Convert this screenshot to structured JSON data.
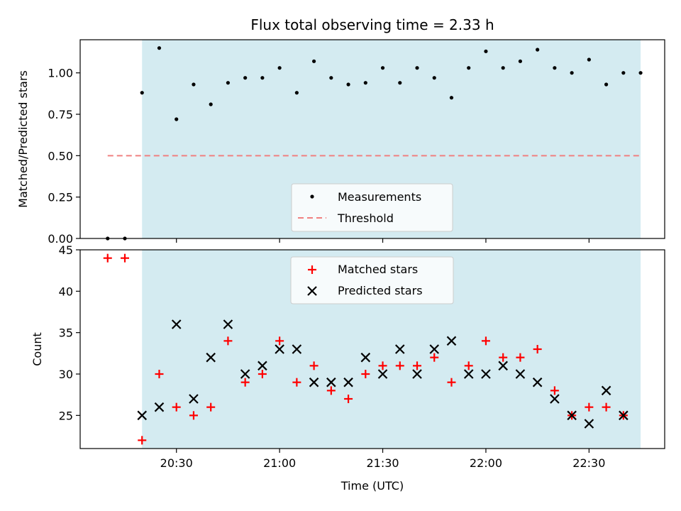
{
  "chart_data": [
    {
      "type": "scatter",
      "title": "Flux total observing time = 2.33 h",
      "ylabel": "Matched/Predicted stars",
      "ylim": [
        0,
        1.2
      ],
      "y_ticks": [
        "0.00",
        "0.25",
        "0.50",
        "0.75",
        "1.00"
      ],
      "shaded_span_x": [
        "20:20",
        "22:45"
      ],
      "shade_color": "#d4ebf1",
      "legend": {
        "placement": "lower-center",
        "entries": [
          "Measurements",
          "Threshold"
        ]
      },
      "series": [
        {
          "name": "Measurements",
          "color": "#000000",
          "marker": "dot",
          "x": [
            "20:10",
            "20:15",
            "20:20",
            "20:25",
            "20:30",
            "20:35",
            "20:40",
            "20:45",
            "20:50",
            "20:55",
            "21:00",
            "21:05",
            "21:10",
            "21:15",
            "21:20",
            "21:25",
            "21:30",
            "21:35",
            "21:40",
            "21:45",
            "21:50",
            "21:55",
            "22:00",
            "22:05",
            "22:10",
            "22:15",
            "22:20",
            "22:25",
            "22:30",
            "22:35",
            "22:40",
            "22:45"
          ],
          "y": [
            0.0,
            0.0,
            0.88,
            1.15,
            0.72,
            0.93,
            0.81,
            0.94,
            0.97,
            0.97,
            1.03,
            0.88,
            1.07,
            0.97,
            0.93,
            0.94,
            1.03,
            0.94,
            1.03,
            0.97,
            0.85,
            1.03,
            1.13,
            1.03,
            1.07,
            1.14,
            1.03,
            1.0,
            1.08,
            0.93,
            1.0,
            1.0
          ]
        },
        {
          "name": "Threshold",
          "color": "#f08080",
          "style": "dashed",
          "x": [
            "20:10",
            "22:45"
          ],
          "y": [
            0.5,
            0.5
          ]
        }
      ]
    },
    {
      "type": "scatter",
      "xlabel": "Time (UTC)",
      "ylabel": "Count",
      "ylim": [
        21,
        45
      ],
      "y_ticks": [
        "25",
        "30",
        "35",
        "40",
        "45"
      ],
      "x_ticks": [
        "20:30",
        "21:00",
        "21:30",
        "22:00",
        "22:30"
      ],
      "xlim": [
        "20:02",
        "22:52"
      ],
      "shaded_span_x": [
        "20:20",
        "22:45"
      ],
      "legend": {
        "placement": "top-center",
        "entries": [
          "Matched stars",
          "Predicted stars"
        ]
      },
      "series": [
        {
          "name": "Matched stars",
          "color": "#ff0000",
          "marker": "plus",
          "x": [
            "20:10",
            "20:15",
            "20:20",
            "20:25",
            "20:30",
            "20:35",
            "20:40",
            "20:45",
            "20:50",
            "20:55",
            "21:00",
            "21:05",
            "21:10",
            "21:15",
            "21:20",
            "21:25",
            "21:30",
            "21:35",
            "21:40",
            "21:45",
            "21:50",
            "21:55",
            "22:00",
            "22:05",
            "22:10",
            "22:15",
            "22:20",
            "22:25",
            "22:30",
            "22:35",
            "22:40"
          ],
          "y": [
            44,
            44,
            22,
            30,
            26,
            25,
            26,
            34,
            29,
            30,
            34,
            29,
            31,
            28,
            27,
            30,
            31,
            31,
            31,
            32,
            29,
            31,
            34,
            32,
            32,
            33,
            28,
            25,
            26,
            26,
            25
          ]
        },
        {
          "name": "Predicted stars",
          "color": "#000000",
          "marker": "x",
          "x": [
            "20:20",
            "20:25",
            "20:30",
            "20:35",
            "20:40",
            "20:45",
            "20:50",
            "20:55",
            "21:00",
            "21:05",
            "21:10",
            "21:15",
            "21:20",
            "21:25",
            "21:30",
            "21:35",
            "21:40",
            "21:45",
            "21:50",
            "21:55",
            "22:00",
            "22:05",
            "22:10",
            "22:15",
            "22:20",
            "22:25",
            "22:30",
            "22:35",
            "22:40"
          ],
          "y": [
            25,
            26,
            36,
            27,
            32,
            36,
            30,
            31,
            33,
            33,
            29,
            29,
            29,
            32,
            30,
            33,
            30,
            33,
            34,
            30,
            30,
            31,
            30,
            29,
            27,
            25,
            24,
            28,
            25
          ]
        }
      ]
    }
  ]
}
